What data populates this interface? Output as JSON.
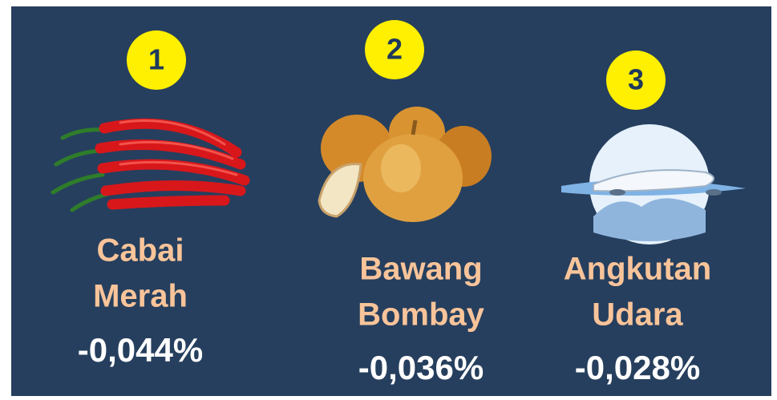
{
  "items": [
    {
      "rank": "1",
      "name": [
        "Cabai",
        "Merah"
      ],
      "change": "-0,044%"
    },
    {
      "rank": "2",
      "name": [
        "Bawang",
        "Bombay"
      ],
      "change": "-0,036%"
    },
    {
      "rank": "3",
      "name": [
        "Angkutan",
        "Udara"
      ],
      "change": "-0,028%"
    }
  ]
}
